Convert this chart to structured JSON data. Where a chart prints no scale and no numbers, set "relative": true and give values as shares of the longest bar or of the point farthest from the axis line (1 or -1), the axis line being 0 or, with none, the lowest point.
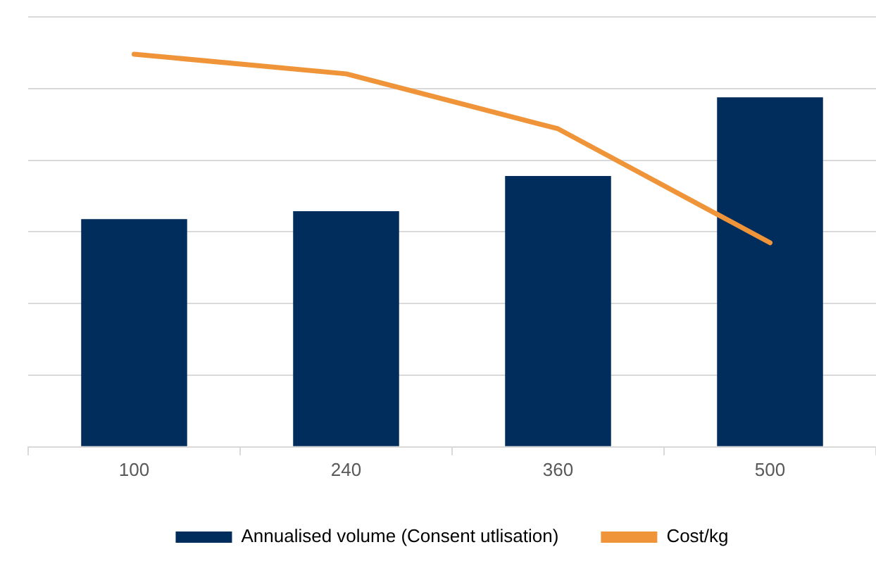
{
  "chart_data": {
    "type": "bar",
    "relative": true,
    "categories": [
      "100",
      "240",
      "360",
      "500"
    ],
    "series": [
      {
        "name": "Annualised volume (Consent utlisation)",
        "color": "#002d5c",
        "values": [
          0.58,
          0.6,
          0.69,
          0.89
        ]
      },
      {
        "name": "Cost/kg",
        "type": "line",
        "color": "#ef9439",
        "values": [
          1,
          0.95,
          0.81,
          0.52
        ]
      }
    ],
    "grid": "y",
    "legend": "bottom",
    "marker": "none"
  }
}
